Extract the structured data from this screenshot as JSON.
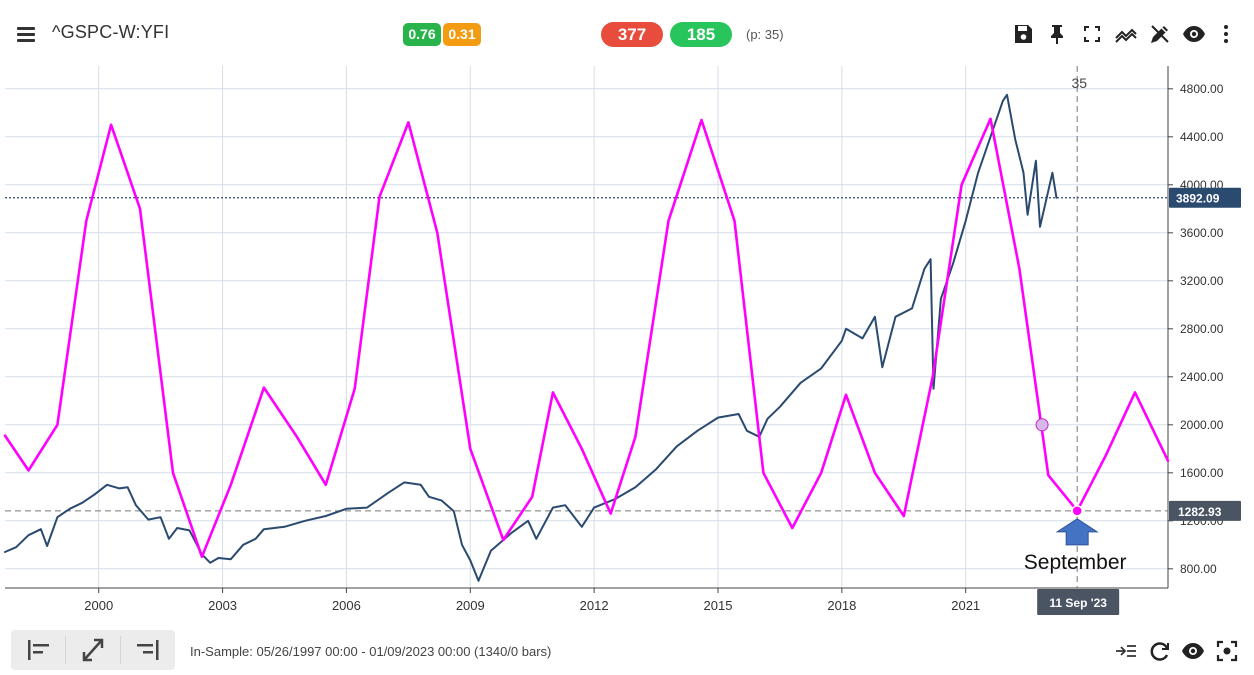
{
  "app": {
    "symbol": "^GSPC-W:YFI",
    "badges": [
      {
        "text": "0.76",
        "color": "#28b44a"
      },
      {
        "text": "0.31",
        "color": "#f39c12"
      }
    ],
    "pills": [
      {
        "text": "377",
        "color": "#e74c3c"
      },
      {
        "text": "185",
        "color": "#27c55b"
      }
    ],
    "period_info": "(p: 35)",
    "toolbar_icons": [
      "save-icon",
      "pin-icon",
      "fullscreen-icon",
      "indicator-icon",
      "draw-icon",
      "eye-icon",
      "more-icon"
    ]
  },
  "chart_data": {
    "type": "line",
    "title": "",
    "xlabel": "",
    "ylabel": "",
    "x_tick_labels": [
      "2000",
      "2003",
      "2006",
      "2009",
      "2012",
      "2015",
      "2018",
      "2021"
    ],
    "y_tick_labels": [
      "800.00",
      "1200.00",
      "1600.00",
      "2000.00",
      "2400.00",
      "2800.00",
      "3200.00",
      "3600.00",
      "4000.00",
      "4400.00",
      "4800.00"
    ],
    "ylim": [
      640,
      4990
    ],
    "xlim": [
      1997.73,
      2025.9
    ],
    "grid": true,
    "series": [
      {
        "color": "#2b4a6f",
        "x": [
          1997.73,
          1998.0,
          1998.3,
          1998.6,
          1998.75,
          1999.0,
          1999.3,
          1999.6,
          1999.9,
          2000.2,
          2000.5,
          2000.7,
          2000.9,
          2001.2,
          2001.5,
          2001.7,
          2001.9,
          2002.2,
          2002.5,
          2002.7,
          2002.9,
          2003.2,
          2003.5,
          2003.8,
          2004.0,
          2004.5,
          2005.0,
          2005.5,
          2006.0,
          2006.5,
          2007.0,
          2007.4,
          2007.8,
          2008.0,
          2008.3,
          2008.6,
          2008.8,
          2009.0,
          2009.2,
          2009.5,
          2010.0,
          2010.4,
          2010.6,
          2011.0,
          2011.3,
          2011.7,
          2012.0,
          2012.5,
          2013.0,
          2013.5,
          2014.0,
          2014.5,
          2015.0,
          2015.5,
          2015.7,
          2016.0,
          2016.2,
          2016.5,
          2017.0,
          2017.5,
          2018.0,
          2018.1,
          2018.5,
          2018.8,
          2018.98,
          2019.3,
          2019.7,
          2020.0,
          2020.15,
          2020.22,
          2020.4,
          2020.7,
          2021.0,
          2021.3,
          2021.6,
          2021.9,
          2022.0,
          2022.2,
          2022.4,
          2022.5,
          2022.7,
          2022.8,
          2023.0,
          2023.1,
          2023.2
        ],
        "y": [
          940,
          980,
          1080,
          1130,
          990,
          1230,
          1300,
          1350,
          1420,
          1500,
          1470,
          1480,
          1330,
          1210,
          1230,
          1050,
          1140,
          1120,
          920,
          850,
          890,
          880,
          1000,
          1050,
          1130,
          1150,
          1200,
          1240,
          1300,
          1310,
          1430,
          1520,
          1500,
          1400,
          1370,
          1280,
          1000,
          870,
          700,
          950,
          1100,
          1200,
          1050,
          1310,
          1330,
          1150,
          1310,
          1380,
          1480,
          1630,
          1820,
          1950,
          2060,
          2090,
          1950,
          1900,
          2050,
          2150,
          2350,
          2470,
          2700,
          2800,
          2720,
          2900,
          2480,
          2900,
          2970,
          3300,
          3380,
          2300,
          3050,
          3350,
          3700,
          4100,
          4400,
          4700,
          4750,
          4380,
          4100,
          3750,
          4200,
          3650,
          3950,
          4100,
          3892
        ]
      },
      {
        "color": "#ff00ff",
        "x": [
          1997.73,
          1998.3,
          1999.0,
          1999.7,
          2000.3,
          2001.0,
          2001.8,
          2002.5,
          2003.2,
          2004.0,
          2004.8,
          2005.5,
          2006.2,
          2006.8,
          2007.5,
          2008.2,
          2009.0,
          2009.8,
          2010.5,
          2011.0,
          2011.7,
          2012.4,
          2013.0,
          2013.8,
          2014.6,
          2015.4,
          2016.1,
          2016.8,
          2017.5,
          2018.1,
          2018.8,
          2019.5,
          2020.2,
          2020.9,
          2021.6,
          2022.3,
          2023.0,
          2023.7,
          2024.4,
          2025.1,
          2025.9
        ],
        "y": [
          1910,
          1620,
          2000,
          3700,
          4500,
          3800,
          1600,
          900,
          1500,
          2310,
          1900,
          1500,
          2300,
          3900,
          4520,
          3600,
          1800,
          1040,
          1400,
          2270,
          1800,
          1260,
          1900,
          3700,
          4540,
          3700,
          1600,
          1140,
          1600,
          2250,
          1600,
          1240,
          2400,
          4000,
          4550,
          3300,
          1580,
          1282.93,
          1750,
          2270,
          1700
        ]
      }
    ],
    "price_line_value": "3892.09",
    "cursor_value": "1282.93",
    "cursor_date": "11 Sep '23",
    "marker_label": "35",
    "marker_label_x": 2023.75,
    "marker_label_y": 4850,
    "cursor_x": 2023.7,
    "hollow_point": {
      "x": 2022.85,
      "y": 2000
    },
    "annotation_text": "September",
    "annotation_arrow_color": "#4472c4"
  },
  "bottom": {
    "sample_text": "In-Sample: 05/26/1997 00:00 - 01/09/2023 00:00 (1340/0 bars)",
    "left_buttons": [
      "align-left-icon",
      "expand-icon",
      "align-right-icon"
    ],
    "right_icons": [
      "scroll-to-end-icon",
      "refresh-icon",
      "eye-icon",
      "target-icon"
    ]
  }
}
